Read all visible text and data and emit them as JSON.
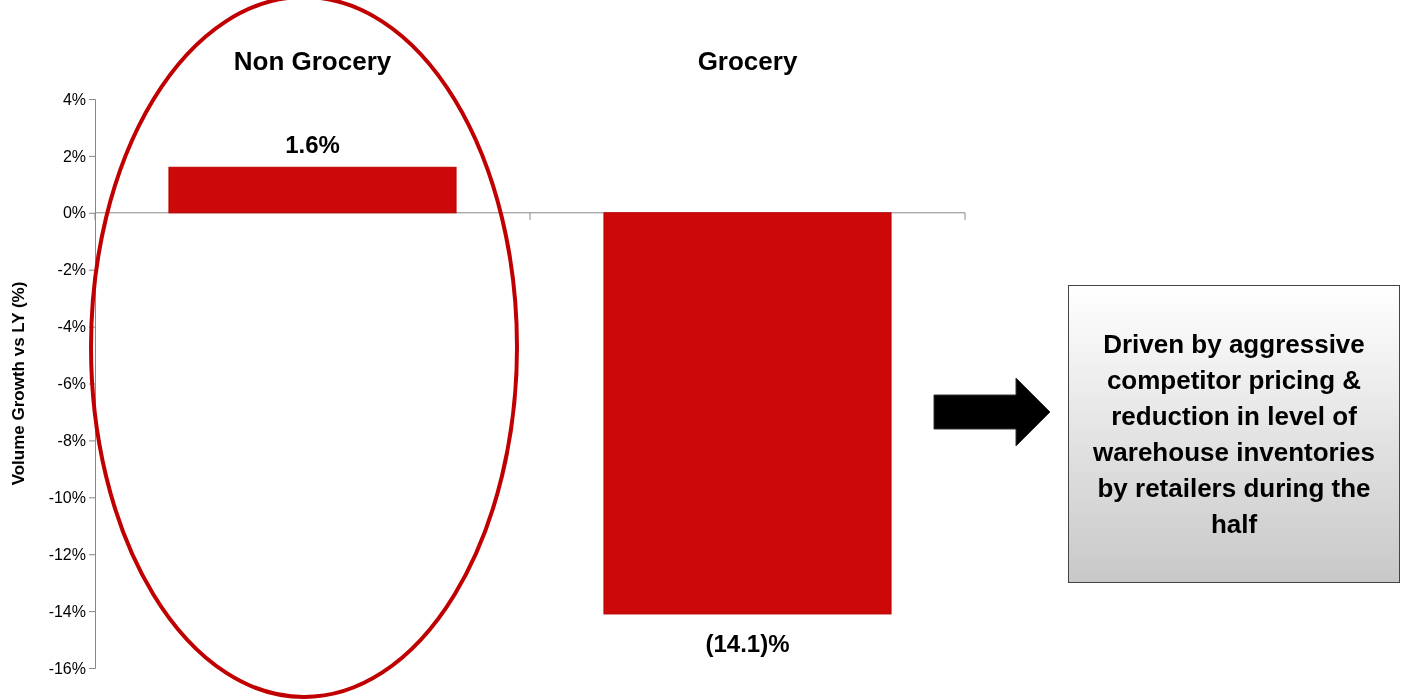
{
  "chart_data": {
    "type": "bar",
    "ylabel": "Volume Growth vs LY (%)",
    "categories": [
      "Non Grocery",
      "Grocery"
    ],
    "values": [
      1.6,
      -14.1
    ],
    "color": "#cc0808",
    "value_labels": [
      "1.6%",
      "(14.1)%"
    ],
    "ylim": [
      -16,
      4
    ],
    "yticks": [
      {
        "value": -16,
        "label": "-16%"
      },
      {
        "value": -14,
        "label": "-14%"
      },
      {
        "value": -12,
        "label": "-12%"
      },
      {
        "value": -10,
        "label": "-10%"
      },
      {
        "value": -8,
        "label": "-8%"
      },
      {
        "value": -6,
        "label": "-6%"
      },
      {
        "value": -4,
        "label": "-4%"
      },
      {
        "value": -2,
        "label": "-2%"
      },
      {
        "value": 0,
        "label": "0%"
      },
      {
        "value": 2,
        "label": "2%"
      },
      {
        "value": 4,
        "label": "4%"
      }
    ],
    "annotations": [
      "Driven by aggressive competitor pricing & reduction in level of warehouse inventories by retailers during the half"
    ]
  }
}
